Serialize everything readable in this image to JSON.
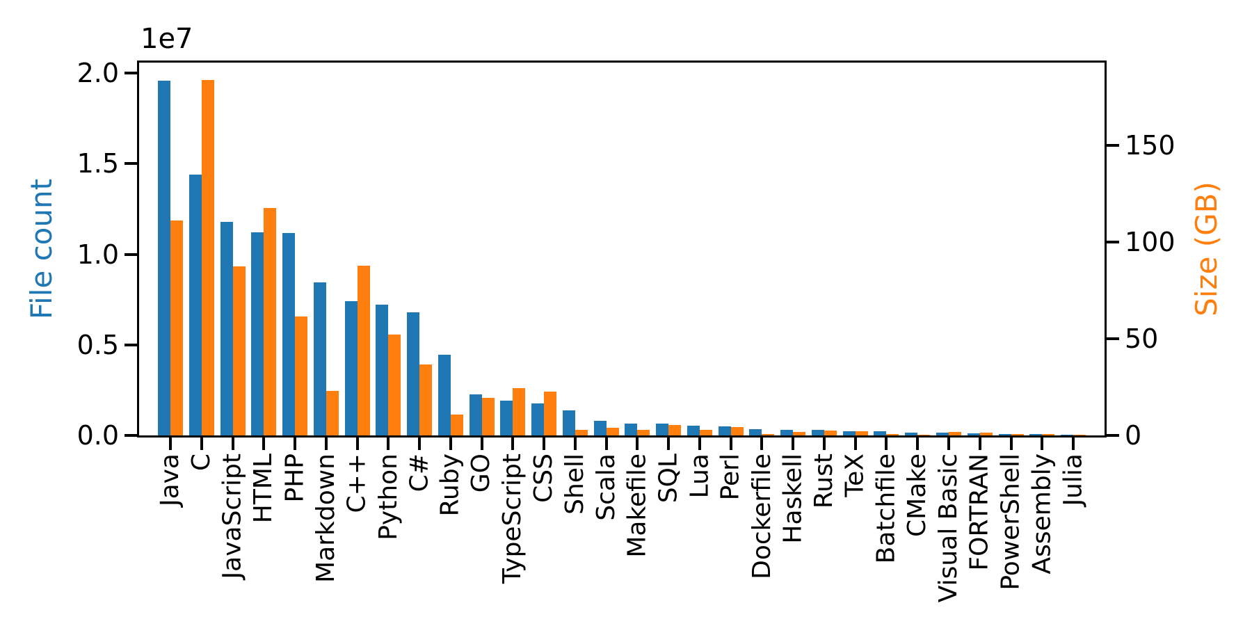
{
  "figure": {
    "offset_text": "1e7",
    "background": "#ffffff",
    "spine_color": "#000000",
    "left_axis": {
      "label": "File count",
      "color": "#1f77b4",
      "tick_labels": [
        "0.0",
        "0.5",
        "1.0",
        "1.5",
        "2.0"
      ],
      "tick_values": [
        0,
        5000000,
        10000000,
        15000000,
        20000000
      ]
    },
    "right_axis": {
      "label": "Size (GB)",
      "color": "#ff7f0e",
      "tick_labels": [
        "0",
        "50",
        "100",
        "150"
      ],
      "tick_values": [
        0,
        50,
        100,
        150
      ]
    }
  },
  "chart_data": {
    "type": "bar",
    "title": "",
    "xlabel": "",
    "ylabel_left": "File count",
    "ylabel_right": "Size (GB)",
    "legend": "none",
    "grid": false,
    "ylim_left": [
      0,
      20580000
    ],
    "ylim_right": [
      0,
      192.8
    ],
    "categories": [
      "Java",
      "C",
      "JavaScript",
      "HTML",
      "PHP",
      "Markdown",
      "C++",
      "Python",
      "C#",
      "Ruby",
      "GO",
      "TypeScript",
      "CSS",
      "Shell",
      "Scala",
      "Makefile",
      "SQL",
      "Lua",
      "Perl",
      "Dockerfile",
      "Haskell",
      "Rust",
      "TeX",
      "Batchfile",
      "CMake",
      "Visual Basic",
      "FORTRAN",
      "PowerShell",
      "Assembly",
      "Julia"
    ],
    "series": [
      {
        "name": "File count",
        "axis": "left",
        "color": "#1f77b4",
        "values": [
          19600000,
          14400000,
          11800000,
          11200000,
          11180000,
          8450000,
          7400000,
          7230000,
          6800000,
          4470000,
          2260000,
          1940000,
          1750000,
          1380000,
          820000,
          660000,
          640000,
          550000,
          490000,
          360000,
          320000,
          300000,
          250000,
          230000,
          160000,
          155000,
          115000,
          95000,
          70000,
          50000
        ]
      },
      {
        "name": "Size (GB)",
        "axis": "right",
        "color": "#ff7f0e",
        "values": [
          111,
          184,
          87.5,
          117.5,
          61.4,
          23,
          87.7,
          52,
          36.8,
          10.9,
          19.3,
          24.6,
          22.6,
          3,
          4.1,
          2.9,
          5.5,
          2.8,
          4.5,
          0.7,
          1.85,
          2.6,
          2.1,
          0.7,
          0.55,
          1.9,
          1.6,
          0.7,
          0.8,
          0.3
        ]
      }
    ]
  }
}
